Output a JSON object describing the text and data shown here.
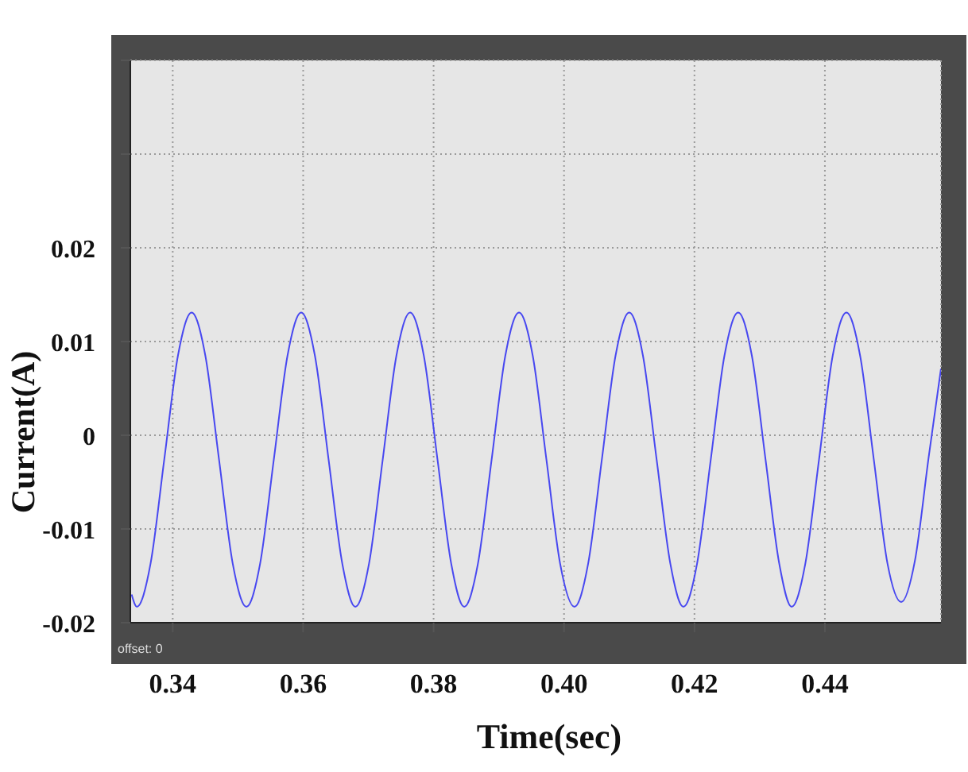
{
  "chart_data": {
    "type": "line",
    "xlabel": "Time(sec)",
    "ylabel": "Current(A)",
    "xlim": [
      0.3335,
      0.4578
    ],
    "ylim": [
      -0.02,
      0.04
    ],
    "xticks": [
      {
        "value": 0.34,
        "label": "0.34"
      },
      {
        "value": 0.36,
        "label": "0.36"
      },
      {
        "value": 0.38,
        "label": "0.38"
      },
      {
        "value": 0.4,
        "label": "0.40"
      },
      {
        "value": 0.42,
        "label": "0.42"
      },
      {
        "value": 0.44,
        "label": "0.44"
      }
    ],
    "yticks": [
      {
        "value": -0.02,
        "label": "-0.02"
      },
      {
        "value": -0.01,
        "label": "-0.01"
      },
      0,
      {
        "value": 0.01,
        "label": "0.01"
      },
      {
        "value": 0.02,
        "label": "0.02"
      },
      {
        "value": 0.03,
        "label": null
      },
      {
        "value": 0.04,
        "label": null
      }
    ],
    "grid": true,
    "marker": "none",
    "line_style": "solid",
    "annotations": [
      "offset: 0"
    ],
    "series": [
      {
        "color": "#4848f0",
        "x": [
          0.3337,
          0.3345,
          0.3366,
          0.3387,
          0.3408,
          0.3429,
          0.345,
          0.3471,
          0.3492,
          0.3513,
          0.3534,
          0.3555,
          0.3576,
          0.3597,
          0.3618,
          0.3639,
          0.366,
          0.368,
          0.3701,
          0.3722,
          0.3743,
          0.3764,
          0.3785,
          0.3806,
          0.3827,
          0.3847,
          0.3868,
          0.3889,
          0.391,
          0.3931,
          0.3952,
          0.3973,
          0.3994,
          0.4016,
          0.4037,
          0.4058,
          0.4079,
          0.41,
          0.4121,
          0.4142,
          0.4163,
          0.4183,
          0.4204,
          0.4225,
          0.4246,
          0.4267,
          0.4288,
          0.4309,
          0.433,
          0.4349,
          0.437,
          0.4391,
          0.4412,
          0.4433,
          0.4454,
          0.4475,
          0.4496,
          0.4517,
          0.4538,
          0.4559,
          0.4578
        ],
        "values": [
          -0.017,
          -0.0183,
          -0.0137,
          -0.0026,
          0.0085,
          0.0131,
          0.0085,
          -0.0026,
          -0.0137,
          -0.0183,
          -0.0137,
          -0.0026,
          0.0085,
          0.0131,
          0.0085,
          -0.0026,
          -0.0137,
          -0.0183,
          -0.0137,
          -0.0026,
          0.0085,
          0.0131,
          0.0085,
          -0.0026,
          -0.0137,
          -0.0183,
          -0.0137,
          -0.0026,
          0.0085,
          0.0131,
          0.0085,
          -0.0026,
          -0.0137,
          -0.0183,
          -0.0137,
          -0.0026,
          0.0085,
          0.0131,
          0.0085,
          -0.0026,
          -0.0137,
          -0.0183,
          -0.0137,
          -0.0026,
          0.0085,
          0.0131,
          0.0085,
          -0.0026,
          -0.0137,
          -0.0183,
          -0.0137,
          -0.0026,
          0.0085,
          0.0131,
          0.0085,
          -0.0026,
          -0.0137,
          -0.0178,
          -0.0134,
          -0.0024,
          0.0071
        ]
      }
    ]
  }
}
